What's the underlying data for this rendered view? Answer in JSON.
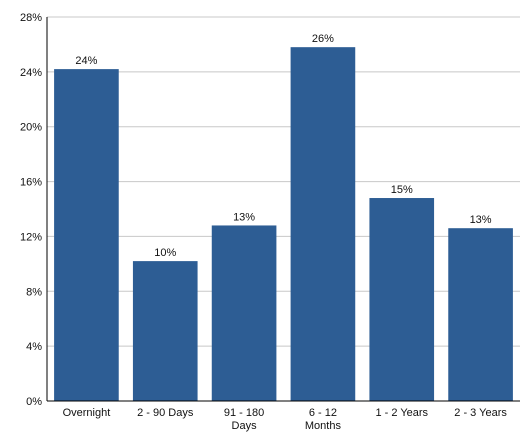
{
  "chart_data": {
    "type": "bar",
    "categories": [
      [
        "Overnight"
      ],
      [
        "2 - 90 Days"
      ],
      [
        "91 - 180",
        "Days"
      ],
      [
        "6 - 12",
        "Months"
      ],
      [
        "1 - 2 Years"
      ],
      [
        "2 - 3 Years"
      ]
    ],
    "values": [
      24.2,
      10.2,
      12.8,
      25.8,
      14.8,
      12.6
    ],
    "data_labels": [
      "24%",
      "10%",
      "13%",
      "26%",
      "15%",
      "13%"
    ],
    "yticks": [
      0,
      4,
      8,
      12,
      16,
      20,
      24,
      28
    ],
    "ytick_labels": [
      "0%",
      "4%",
      "8%",
      "12%",
      "16%",
      "20%",
      "24%",
      "28%"
    ],
    "ylim": [
      0,
      28
    ],
    "grid": true,
    "legend": false,
    "bar_color": "#2d5d94",
    "grid_color": "#c8c8c8",
    "axis_color": "#000000"
  }
}
